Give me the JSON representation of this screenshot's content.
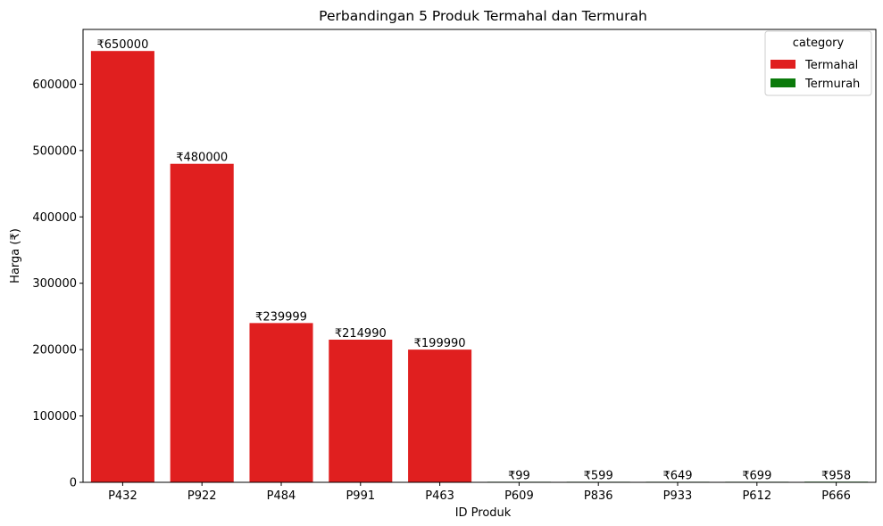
{
  "chart_data": {
    "type": "bar",
    "title": "Perbandingan 5 Produk Termahal dan Termurah",
    "xlabel": "ID Produk",
    "ylabel": "Harga (₹)",
    "ylim": [
      0,
      682500
    ],
    "yticks": [
      0,
      100000,
      200000,
      300000,
      400000,
      500000,
      600000
    ],
    "grid": false,
    "legend": {
      "title": "category",
      "placement": "top-right",
      "entries": [
        {
          "name": "Termahal",
          "color": "#e01f1f"
        },
        {
          "name": "Termurah",
          "color": "#0b7a0b"
        }
      ]
    },
    "bars": [
      {
        "category": "P432",
        "value": 650000,
        "group": "Termahal",
        "label": "₹650000"
      },
      {
        "category": "P922",
        "value": 480000,
        "group": "Termahal",
        "label": "₹480000"
      },
      {
        "category": "P484",
        "value": 239999,
        "group": "Termahal",
        "label": "₹239999"
      },
      {
        "category": "P991",
        "value": 214990,
        "group": "Termahal",
        "label": "₹214990"
      },
      {
        "category": "P463",
        "value": 199990,
        "group": "Termahal",
        "label": "₹199990"
      },
      {
        "category": "P609",
        "value": 99,
        "group": "Termurah",
        "label": "₹99"
      },
      {
        "category": "P836",
        "value": 599,
        "group": "Termurah",
        "label": "₹599"
      },
      {
        "category": "P933",
        "value": 649,
        "group": "Termurah",
        "label": "₹649"
      },
      {
        "category": "P612",
        "value": 699,
        "group": "Termurah",
        "label": "₹699"
      },
      {
        "category": "P666",
        "value": 958,
        "group": "Termurah",
        "label": "₹958"
      }
    ]
  }
}
